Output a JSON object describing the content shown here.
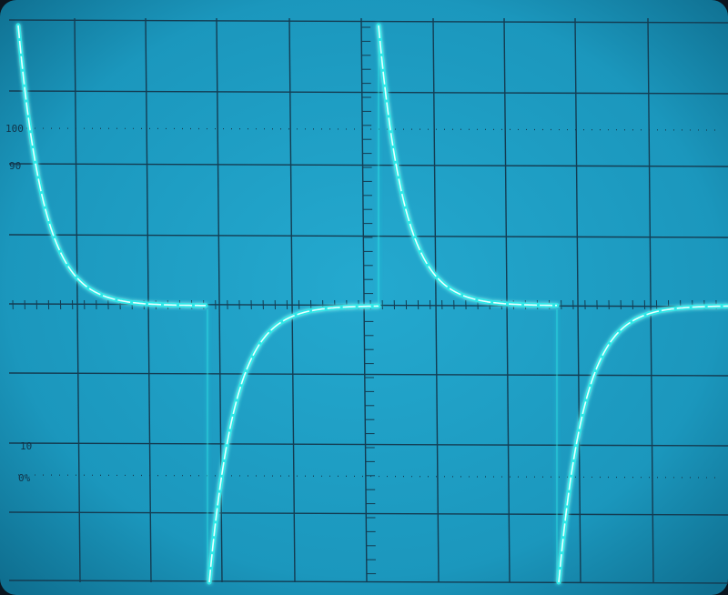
{
  "scope": {
    "screen_color": "#1e9ec4",
    "screen_edge_color": "#0d6e8f",
    "graticule_color": "#143c52",
    "trace_color": "#5ffff2",
    "trace_glow_color": "#2ee8e8",
    "labels": {
      "top_100": "100",
      "top_90": "90",
      "bottom_10": "10",
      "bottom_0": "0%"
    }
  }
}
